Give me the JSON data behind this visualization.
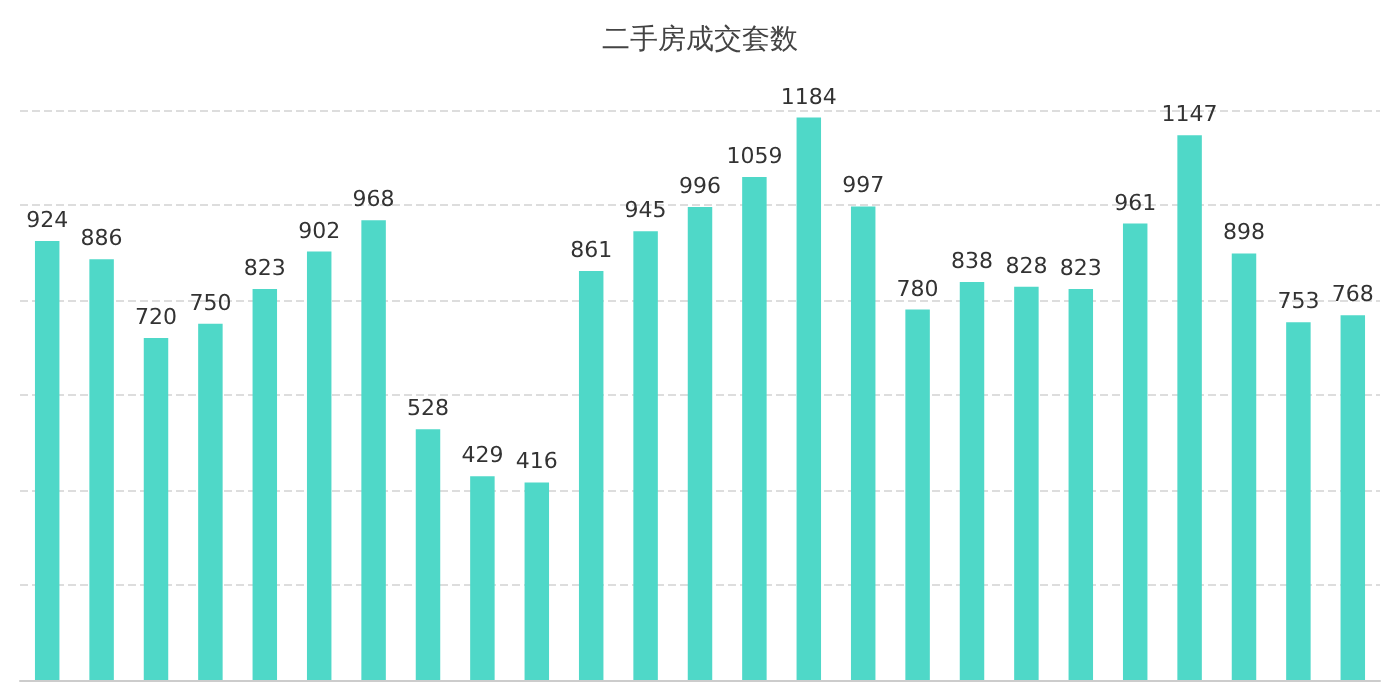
{
  "chart_data": {
    "type": "bar",
    "title": "二手房成交套数",
    "categories": [
      null,
      null,
      null,
      null,
      null,
      null,
      null,
      null,
      null,
      null,
      null,
      null,
      null,
      null,
      null,
      null,
      null,
      null,
      null,
      null,
      null,
      null,
      null,
      null,
      null
    ],
    "values": [
      924,
      886,
      720,
      750,
      823,
      902,
      968,
      528,
      429,
      416,
      861,
      945,
      996,
      1059,
      1184,
      997,
      780,
      838,
      828,
      823,
      961,
      1147,
      898,
      753,
      768
    ],
    "color": "#4fd8c8",
    "data_labels": true,
    "grid": "y",
    "tick_labels": false
  }
}
